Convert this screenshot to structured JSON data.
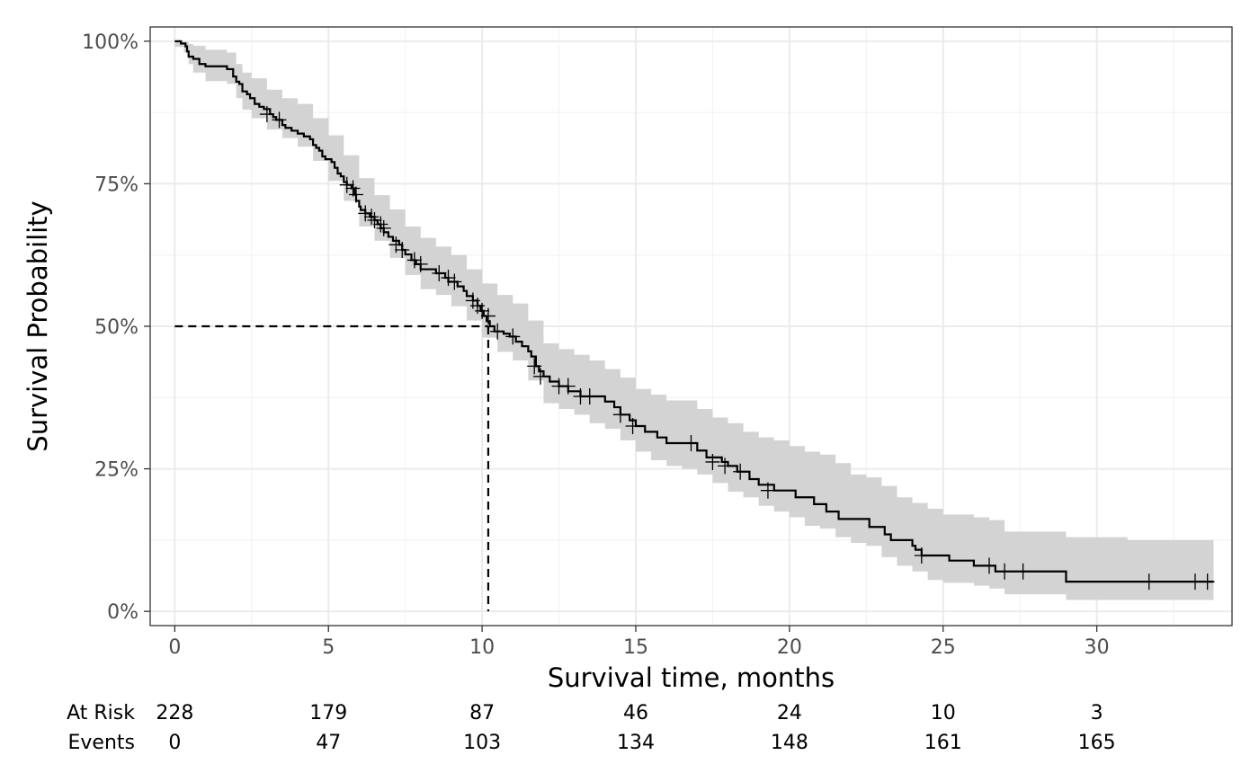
{
  "chart_data": {
    "type": "line",
    "subtype": "kaplan-meier",
    "xlabel": "Survival time, months",
    "ylabel": "Survival Probability",
    "xlim": [
      -0.8,
      34.4
    ],
    "ylim": [
      -0.025,
      1.025
    ],
    "x_ticks": [
      0,
      5,
      10,
      15,
      20,
      25,
      30
    ],
    "x_tick_labels": [
      "0",
      "5",
      "10",
      "15",
      "20",
      "25",
      "30"
    ],
    "y_ticks": [
      0,
      0.25,
      0.5,
      0.75,
      1.0
    ],
    "y_tick_labels": [
      "0%",
      "25%",
      "50%",
      "75%",
      "100%"
    ],
    "grid": true,
    "colors": {
      "line": "#000000",
      "confidence_band": "#d3d3d3",
      "grid_major": "#ebebeb",
      "grid_minor": "#f3f3f3",
      "panel_border": "#333333"
    },
    "median_survival": {
      "x": 10.2,
      "y": 0.5,
      "style": "dashed"
    },
    "survival_curve": [
      [
        0,
        1.0
      ],
      [
        0.2,
        0.996
      ],
      [
        0.35,
        0.991
      ],
      [
        0.4,
        0.982
      ],
      [
        0.45,
        0.973
      ],
      [
        0.6,
        0.969
      ],
      [
        0.8,
        0.96
      ],
      [
        1.0,
        0.956
      ],
      [
        1.7,
        0.951
      ],
      [
        1.9,
        0.938
      ],
      [
        2.0,
        0.929
      ],
      [
        2.1,
        0.925
      ],
      [
        2.2,
        0.912
      ],
      [
        2.35,
        0.907
      ],
      [
        2.45,
        0.9
      ],
      [
        2.6,
        0.89
      ],
      [
        2.75,
        0.885
      ],
      [
        2.9,
        0.881
      ],
      [
        3.1,
        0.872
      ],
      [
        3.2,
        0.867
      ],
      [
        3.3,
        0.862
      ],
      [
        3.5,
        0.853
      ],
      [
        3.6,
        0.848
      ],
      [
        3.8,
        0.843
      ],
      [
        4.0,
        0.838
      ],
      [
        4.2,
        0.833
      ],
      [
        4.4,
        0.828
      ],
      [
        4.5,
        0.818
      ],
      [
        4.6,
        0.813
      ],
      [
        4.7,
        0.808
      ],
      [
        4.8,
        0.798
      ],
      [
        4.9,
        0.793
      ],
      [
        5.1,
        0.788
      ],
      [
        5.2,
        0.778
      ],
      [
        5.3,
        0.768
      ],
      [
        5.4,
        0.763
      ],
      [
        5.5,
        0.753
      ],
      [
        5.6,
        0.748
      ],
      [
        5.75,
        0.742
      ],
      [
        5.85,
        0.731
      ],
      [
        5.9,
        0.72
      ],
      [
        6.0,
        0.71
      ],
      [
        6.05,
        0.704
      ],
      [
        6.2,
        0.698
      ],
      [
        6.35,
        0.692
      ],
      [
        6.5,
        0.686
      ],
      [
        6.6,
        0.679
      ],
      [
        6.7,
        0.672
      ],
      [
        6.8,
        0.665
      ],
      [
        6.95,
        0.657
      ],
      [
        7.1,
        0.65
      ],
      [
        7.3,
        0.643
      ],
      [
        7.4,
        0.634
      ],
      [
        7.5,
        0.626
      ],
      [
        7.7,
        0.616
      ],
      [
        7.85,
        0.609
      ],
      [
        8.0,
        0.6
      ],
      [
        8.5,
        0.593
      ],
      [
        8.8,
        0.585
      ],
      [
        8.9,
        0.578
      ],
      [
        9.2,
        0.57
      ],
      [
        9.4,
        0.562
      ],
      [
        9.5,
        0.553
      ],
      [
        9.7,
        0.545
      ],
      [
        9.85,
        0.536
      ],
      [
        9.95,
        0.527
      ],
      [
        10.05,
        0.518
      ],
      [
        10.15,
        0.509
      ],
      [
        10.25,
        0.5
      ],
      [
        10.4,
        0.491
      ],
      [
        10.7,
        0.487
      ],
      [
        10.9,
        0.482
      ],
      [
        11.1,
        0.473
      ],
      [
        11.3,
        0.465
      ],
      [
        11.5,
        0.456
      ],
      [
        11.6,
        0.447
      ],
      [
        11.75,
        0.43
      ],
      [
        11.85,
        0.421
      ],
      [
        12.0,
        0.412
      ],
      [
        12.2,
        0.403
      ],
      [
        12.5,
        0.395
      ],
      [
        12.8,
        0.386
      ],
      [
        13.2,
        0.377
      ],
      [
        14.0,
        0.368
      ],
      [
        14.3,
        0.358
      ],
      [
        14.5,
        0.345
      ],
      [
        14.8,
        0.335
      ],
      [
        15.0,
        0.325
      ],
      [
        15.3,
        0.315
      ],
      [
        15.7,
        0.305
      ],
      [
        16.0,
        0.295
      ],
      [
        17.0,
        0.282
      ],
      [
        17.3,
        0.27
      ],
      [
        17.8,
        0.262
      ],
      [
        18.0,
        0.255
      ],
      [
        18.3,
        0.245
      ],
      [
        18.7,
        0.232
      ],
      [
        19.0,
        0.222
      ],
      [
        19.5,
        0.212
      ],
      [
        20.2,
        0.2
      ],
      [
        20.8,
        0.188
      ],
      [
        21.2,
        0.175
      ],
      [
        21.6,
        0.162
      ],
      [
        22.6,
        0.148
      ],
      [
        23.1,
        0.135
      ],
      [
        23.3,
        0.125
      ],
      [
        24.0,
        0.115
      ],
      [
        24.1,
        0.108
      ],
      [
        24.3,
        0.098
      ],
      [
        25.2,
        0.089
      ],
      [
        26.0,
        0.08
      ],
      [
        26.7,
        0.07
      ],
      [
        29.0,
        0.052
      ],
      [
        33.8,
        0.052
      ]
    ],
    "confidence_band": [
      [
        0,
        1.0,
        0.99
      ],
      [
        0.3,
        0.999,
        0.98
      ],
      [
        0.45,
        0.995,
        0.96
      ],
      [
        0.6,
        0.992,
        0.945
      ],
      [
        1.0,
        0.985,
        0.93
      ],
      [
        1.7,
        0.98,
        0.925
      ],
      [
        2.0,
        0.96,
        0.9
      ],
      [
        2.2,
        0.945,
        0.88
      ],
      [
        2.5,
        0.935,
        0.865
      ],
      [
        3.0,
        0.915,
        0.845
      ],
      [
        3.5,
        0.9,
        0.83
      ],
      [
        4.0,
        0.89,
        0.815
      ],
      [
        4.5,
        0.865,
        0.79
      ],
      [
        5.0,
        0.835,
        0.755
      ],
      [
        5.5,
        0.8,
        0.72
      ],
      [
        6.0,
        0.76,
        0.675
      ],
      [
        6.5,
        0.73,
        0.65
      ],
      [
        7.0,
        0.705,
        0.62
      ],
      [
        7.5,
        0.675,
        0.59
      ],
      [
        8.0,
        0.655,
        0.565
      ],
      [
        8.5,
        0.64,
        0.555
      ],
      [
        9.0,
        0.625,
        0.535
      ],
      [
        9.5,
        0.6,
        0.51
      ],
      [
        10.0,
        0.575,
        0.48
      ],
      [
        10.5,
        0.555,
        0.455
      ],
      [
        11.0,
        0.54,
        0.44
      ],
      [
        11.5,
        0.51,
        0.405
      ],
      [
        12.0,
        0.47,
        0.365
      ],
      [
        12.5,
        0.46,
        0.355
      ],
      [
        13.0,
        0.45,
        0.345
      ],
      [
        13.5,
        0.44,
        0.33
      ],
      [
        14.0,
        0.425,
        0.32
      ],
      [
        14.5,
        0.41,
        0.3
      ],
      [
        15.0,
        0.39,
        0.28
      ],
      [
        15.5,
        0.38,
        0.265
      ],
      [
        16.0,
        0.37,
        0.255
      ],
      [
        16.5,
        0.37,
        0.25
      ],
      [
        17.0,
        0.355,
        0.24
      ],
      [
        17.5,
        0.34,
        0.225
      ],
      [
        18.0,
        0.33,
        0.21
      ],
      [
        18.5,
        0.315,
        0.2
      ],
      [
        19.0,
        0.305,
        0.185
      ],
      [
        19.5,
        0.3,
        0.175
      ],
      [
        20.0,
        0.29,
        0.165
      ],
      [
        20.5,
        0.28,
        0.15
      ],
      [
        21.0,
        0.275,
        0.145
      ],
      [
        21.5,
        0.26,
        0.13
      ],
      [
        22.0,
        0.24,
        0.12
      ],
      [
        22.5,
        0.235,
        0.115
      ],
      [
        23.0,
        0.22,
        0.095
      ],
      [
        23.5,
        0.2,
        0.08
      ],
      [
        24.0,
        0.19,
        0.07
      ],
      [
        24.5,
        0.18,
        0.055
      ],
      [
        25.0,
        0.17,
        0.05
      ],
      [
        26.0,
        0.165,
        0.045
      ],
      [
        26.5,
        0.16,
        0.04
      ],
      [
        27.0,
        0.14,
        0.03
      ],
      [
        29.0,
        0.13,
        0.02
      ],
      [
        31.0,
        0.125,
        0.02
      ],
      [
        33.8,
        0.125,
        0.02
      ]
    ],
    "censor_marks": [
      [
        3.0,
        0.872
      ],
      [
        3.4,
        0.862
      ],
      [
        5.6,
        0.748
      ],
      [
        5.8,
        0.742
      ],
      [
        5.9,
        0.731
      ],
      [
        6.2,
        0.698
      ],
      [
        6.4,
        0.692
      ],
      [
        6.5,
        0.686
      ],
      [
        6.7,
        0.679
      ],
      [
        6.8,
        0.672
      ],
      [
        7.2,
        0.643
      ],
      [
        7.4,
        0.634
      ],
      [
        7.8,
        0.616
      ],
      [
        8.0,
        0.609
      ],
      [
        8.6,
        0.593
      ],
      [
        8.9,
        0.585
      ],
      [
        9.1,
        0.578
      ],
      [
        9.7,
        0.545
      ],
      [
        9.85,
        0.536
      ],
      [
        10.0,
        0.527
      ],
      [
        10.2,
        0.518
      ],
      [
        10.5,
        0.491
      ],
      [
        11.0,
        0.482
      ],
      [
        11.7,
        0.43
      ],
      [
        11.9,
        0.412
      ],
      [
        12.5,
        0.395
      ],
      [
        12.8,
        0.395
      ],
      [
        13.2,
        0.377
      ],
      [
        13.5,
        0.377
      ],
      [
        14.5,
        0.345
      ],
      [
        14.9,
        0.325
      ],
      [
        16.8,
        0.295
      ],
      [
        17.5,
        0.262
      ],
      [
        17.9,
        0.255
      ],
      [
        18.4,
        0.245
      ],
      [
        19.3,
        0.212
      ],
      [
        24.3,
        0.098
      ],
      [
        26.5,
        0.08
      ],
      [
        27.0,
        0.07
      ],
      [
        27.6,
        0.07
      ],
      [
        31.7,
        0.052
      ],
      [
        33.2,
        0.052
      ],
      [
        33.6,
        0.052
      ]
    ],
    "risk_table": {
      "times": [
        0,
        5,
        10,
        15,
        20,
        25,
        30
      ],
      "rows": [
        {
          "label": "At Risk",
          "values": [
            "228",
            "179",
            "87",
            "46",
            "24",
            "10",
            "3"
          ]
        },
        {
          "label": "Events",
          "values": [
            "0",
            "47",
            "103",
            "134",
            "148",
            "161",
            "165"
          ]
        }
      ]
    }
  }
}
